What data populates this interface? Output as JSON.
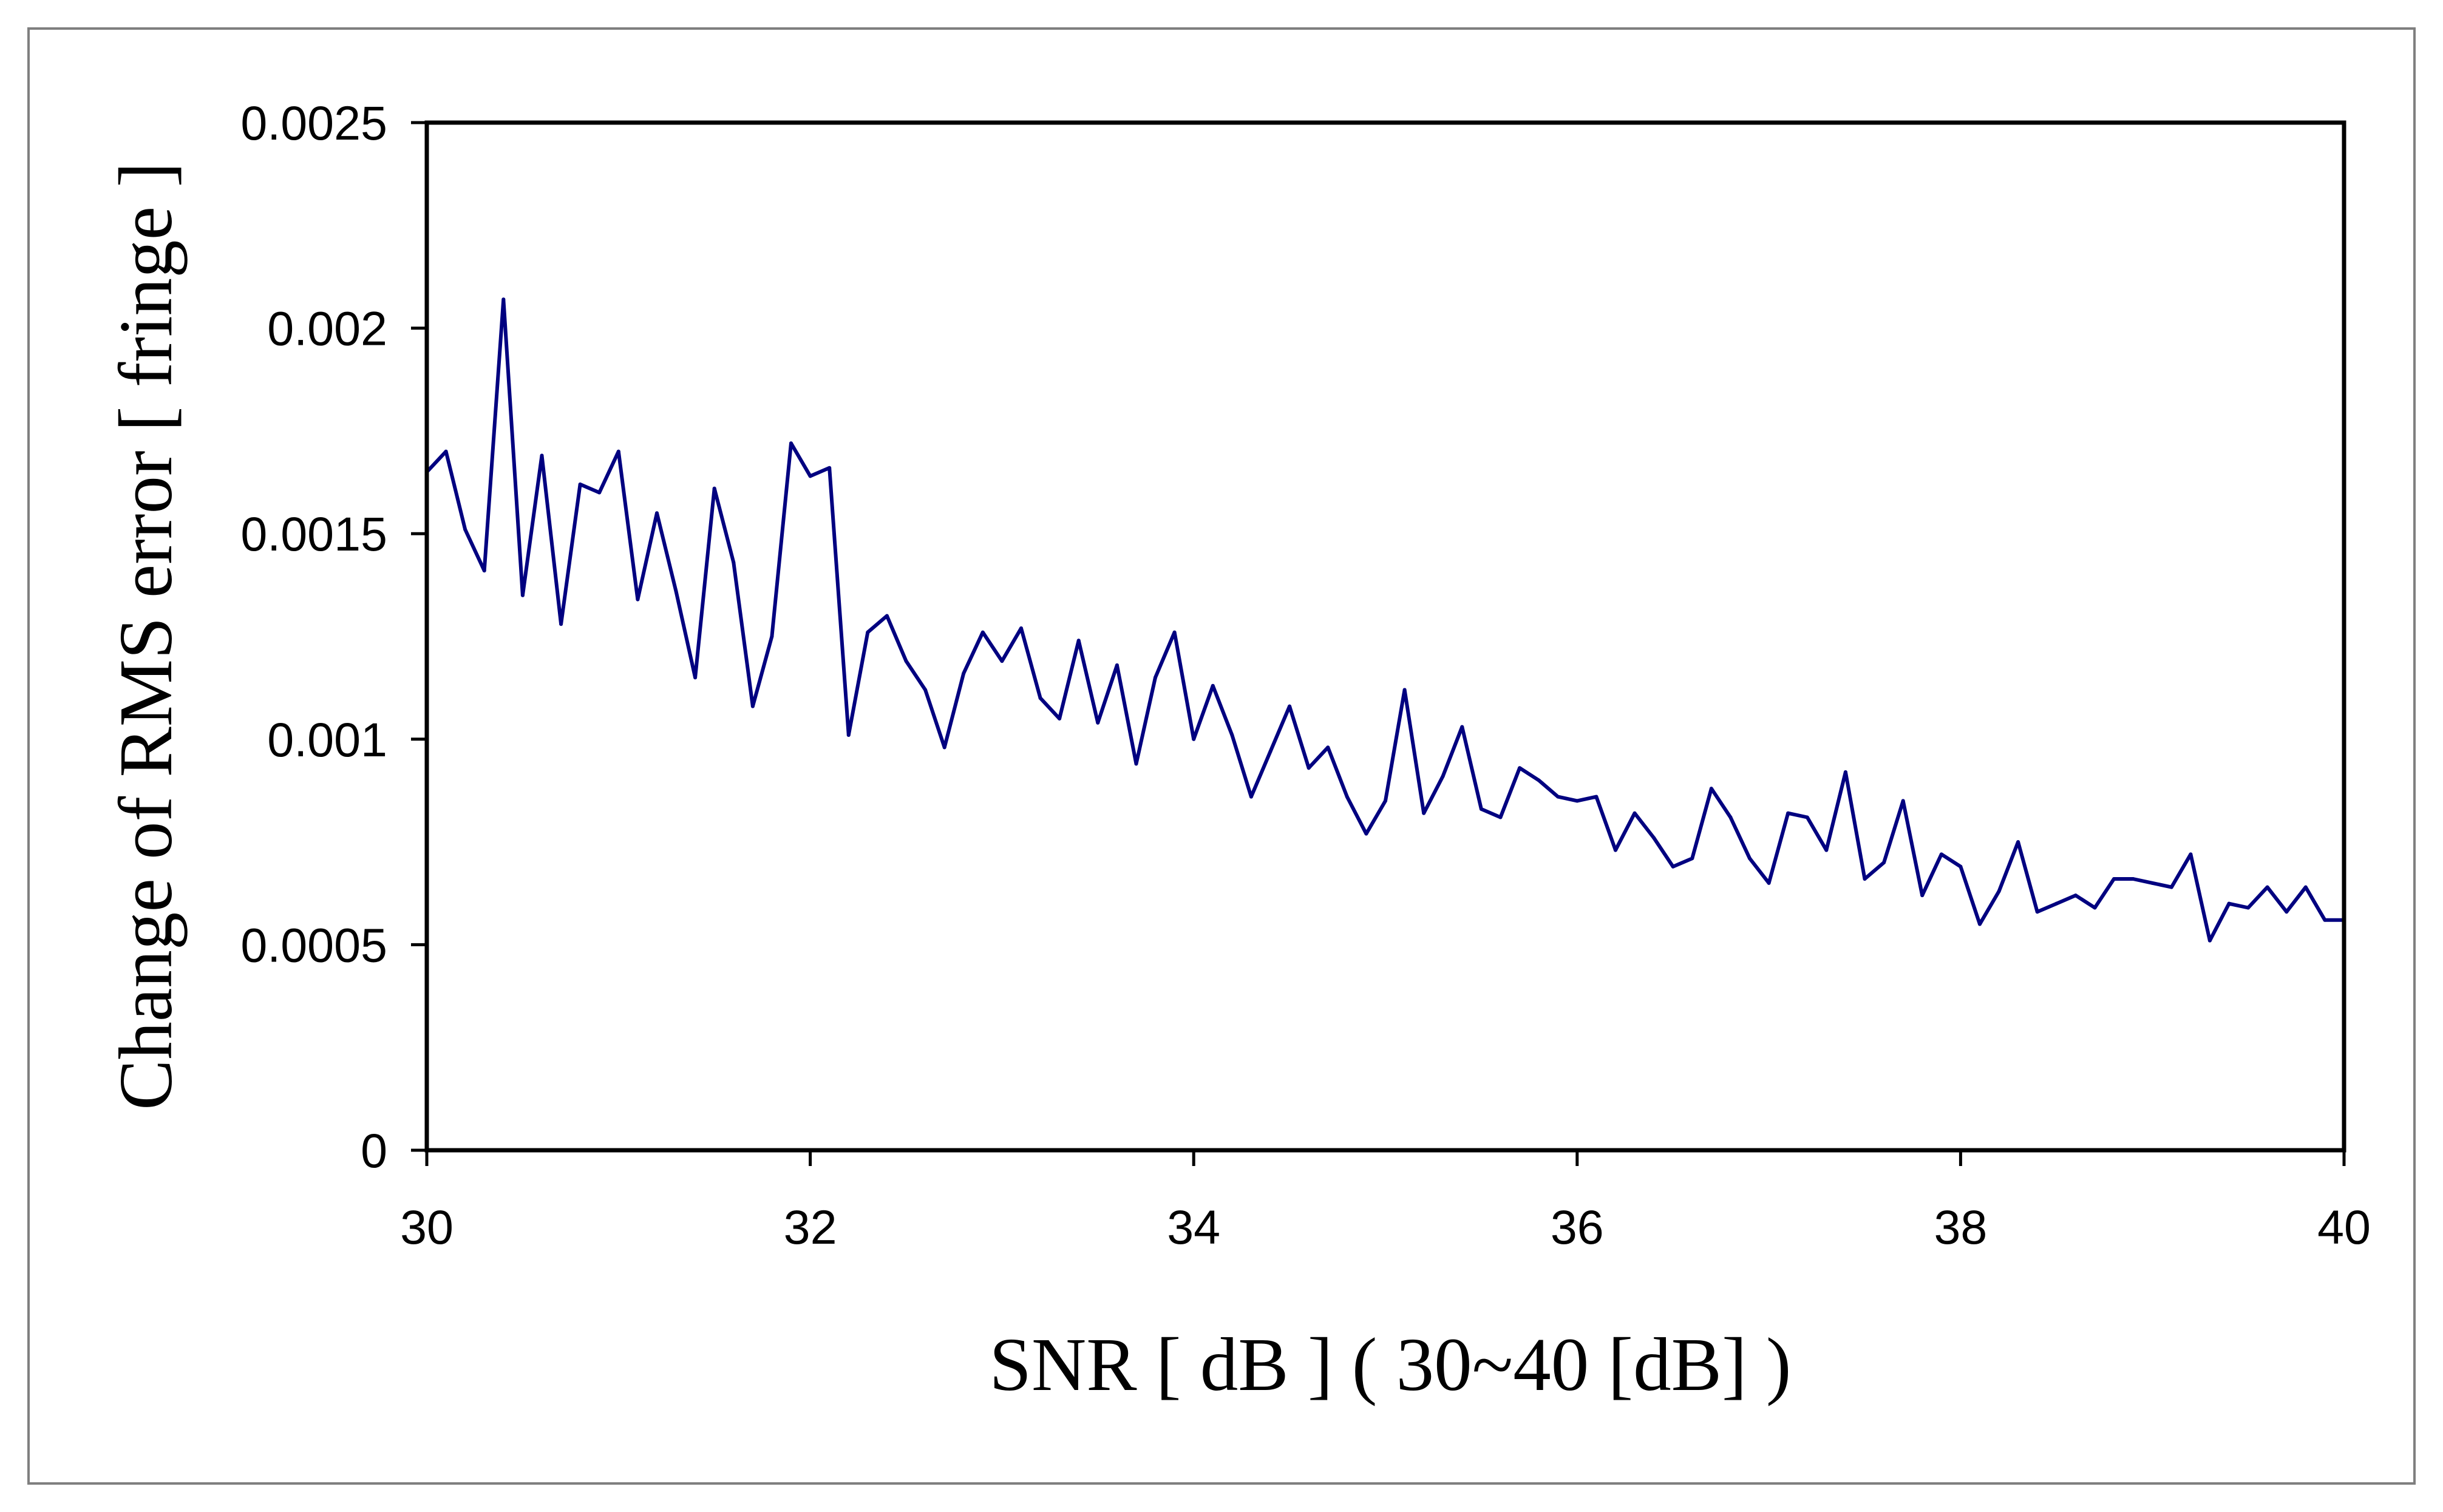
{
  "chart_data": {
    "type": "line",
    "title": "",
    "xlabel": "SNR [ dB ] ( 30~40 [dB] )",
    "ylabel": "Change of RMS error [ fringe ]",
    "xlim": [
      30,
      40
    ],
    "ylim": [
      0,
      0.0025
    ],
    "xticks": [
      30,
      32,
      34,
      36,
      38,
      40
    ],
    "xtick_labels": [
      "30",
      "32",
      "34",
      "36",
      "38",
      "40"
    ],
    "yticks": [
      0,
      0.0005,
      0.001,
      0.0015,
      0.002,
      0.0025
    ],
    "ytick_labels": [
      "0",
      "0.0005",
      "0.001",
      "0.0015",
      "0.002",
      "0.0025"
    ],
    "grid": false,
    "legend": "none",
    "series": [
      {
        "color": "#000080",
        "x": [
          30.0,
          30.1,
          30.2,
          30.3,
          30.4,
          30.5,
          30.6,
          30.7,
          30.8,
          30.9,
          31.0,
          31.1,
          31.2,
          31.3,
          31.4,
          31.5,
          31.6,
          31.7,
          31.8,
          31.9,
          32.0,
          32.1,
          32.2,
          32.3,
          32.4,
          32.5,
          32.6,
          32.7,
          32.8,
          32.9,
          33.0,
          33.1,
          33.2,
          33.3,
          33.4,
          33.5,
          33.6,
          33.7,
          33.8,
          33.9,
          34.0,
          34.1,
          34.2,
          34.3,
          34.4,
          34.5,
          34.6,
          34.7,
          34.8,
          34.9,
          35.0,
          35.1,
          35.2,
          35.3,
          35.4,
          35.5,
          35.6,
          35.7,
          35.8,
          35.9,
          36.0,
          36.1,
          36.2,
          36.3,
          36.4,
          36.5,
          36.6,
          36.7,
          36.8,
          36.9,
          37.0,
          37.1,
          37.2,
          37.3,
          37.4,
          37.5,
          37.6,
          37.7,
          37.8,
          37.9,
          38.0,
          38.1,
          38.2,
          38.3,
          38.4,
          38.5,
          38.6,
          38.7,
          38.8,
          38.9,
          39.0,
          39.1,
          39.2,
          39.3,
          39.4,
          39.5,
          39.6,
          39.7,
          39.8,
          39.9,
          40.0
        ],
        "y": [
          0.00165,
          0.0017,
          0.00151,
          0.00141,
          0.00207,
          0.00135,
          0.00169,
          0.00128,
          0.00162,
          0.0016,
          0.0017,
          0.00134,
          0.00155,
          0.00136,
          0.00115,
          0.00161,
          0.00143,
          0.00108,
          0.00125,
          0.00172,
          0.00164,
          0.00166,
          0.00101,
          0.00126,
          0.0013,
          0.00119,
          0.00112,
          0.00098,
          0.00116,
          0.00126,
          0.00119,
          0.00127,
          0.0011,
          0.00105,
          0.00124,
          0.00104,
          0.00118,
          0.00094,
          0.00115,
          0.00126,
          0.001,
          0.00113,
          0.00101,
          0.00086,
          0.00097,
          0.00108,
          0.00093,
          0.00098,
          0.00086,
          0.00077,
          0.00085,
          0.00112,
          0.00082,
          0.00091,
          0.00103,
          0.00083,
          0.00081,
          0.00093,
          0.0009,
          0.00086,
          0.00085,
          0.00086,
          0.00073,
          0.00082,
          0.00076,
          0.00069,
          0.00071,
          0.00088,
          0.00081,
          0.00071,
          0.00065,
          0.00082,
          0.00081,
          0.00073,
          0.00092,
          0.00066,
          0.0007,
          0.00085,
          0.00062,
          0.00072,
          0.00069,
          0.00055,
          0.00063,
          0.00075,
          0.00058,
          0.0006,
          0.00062,
          0.00059,
          0.00066,
          0.00066,
          0.00065,
          0.00064,
          0.00072,
          0.00051,
          0.0006,
          0.00059,
          0.00064,
          0.00058,
          0.00064,
          0.00056,
          0.00056
        ]
      }
    ]
  }
}
